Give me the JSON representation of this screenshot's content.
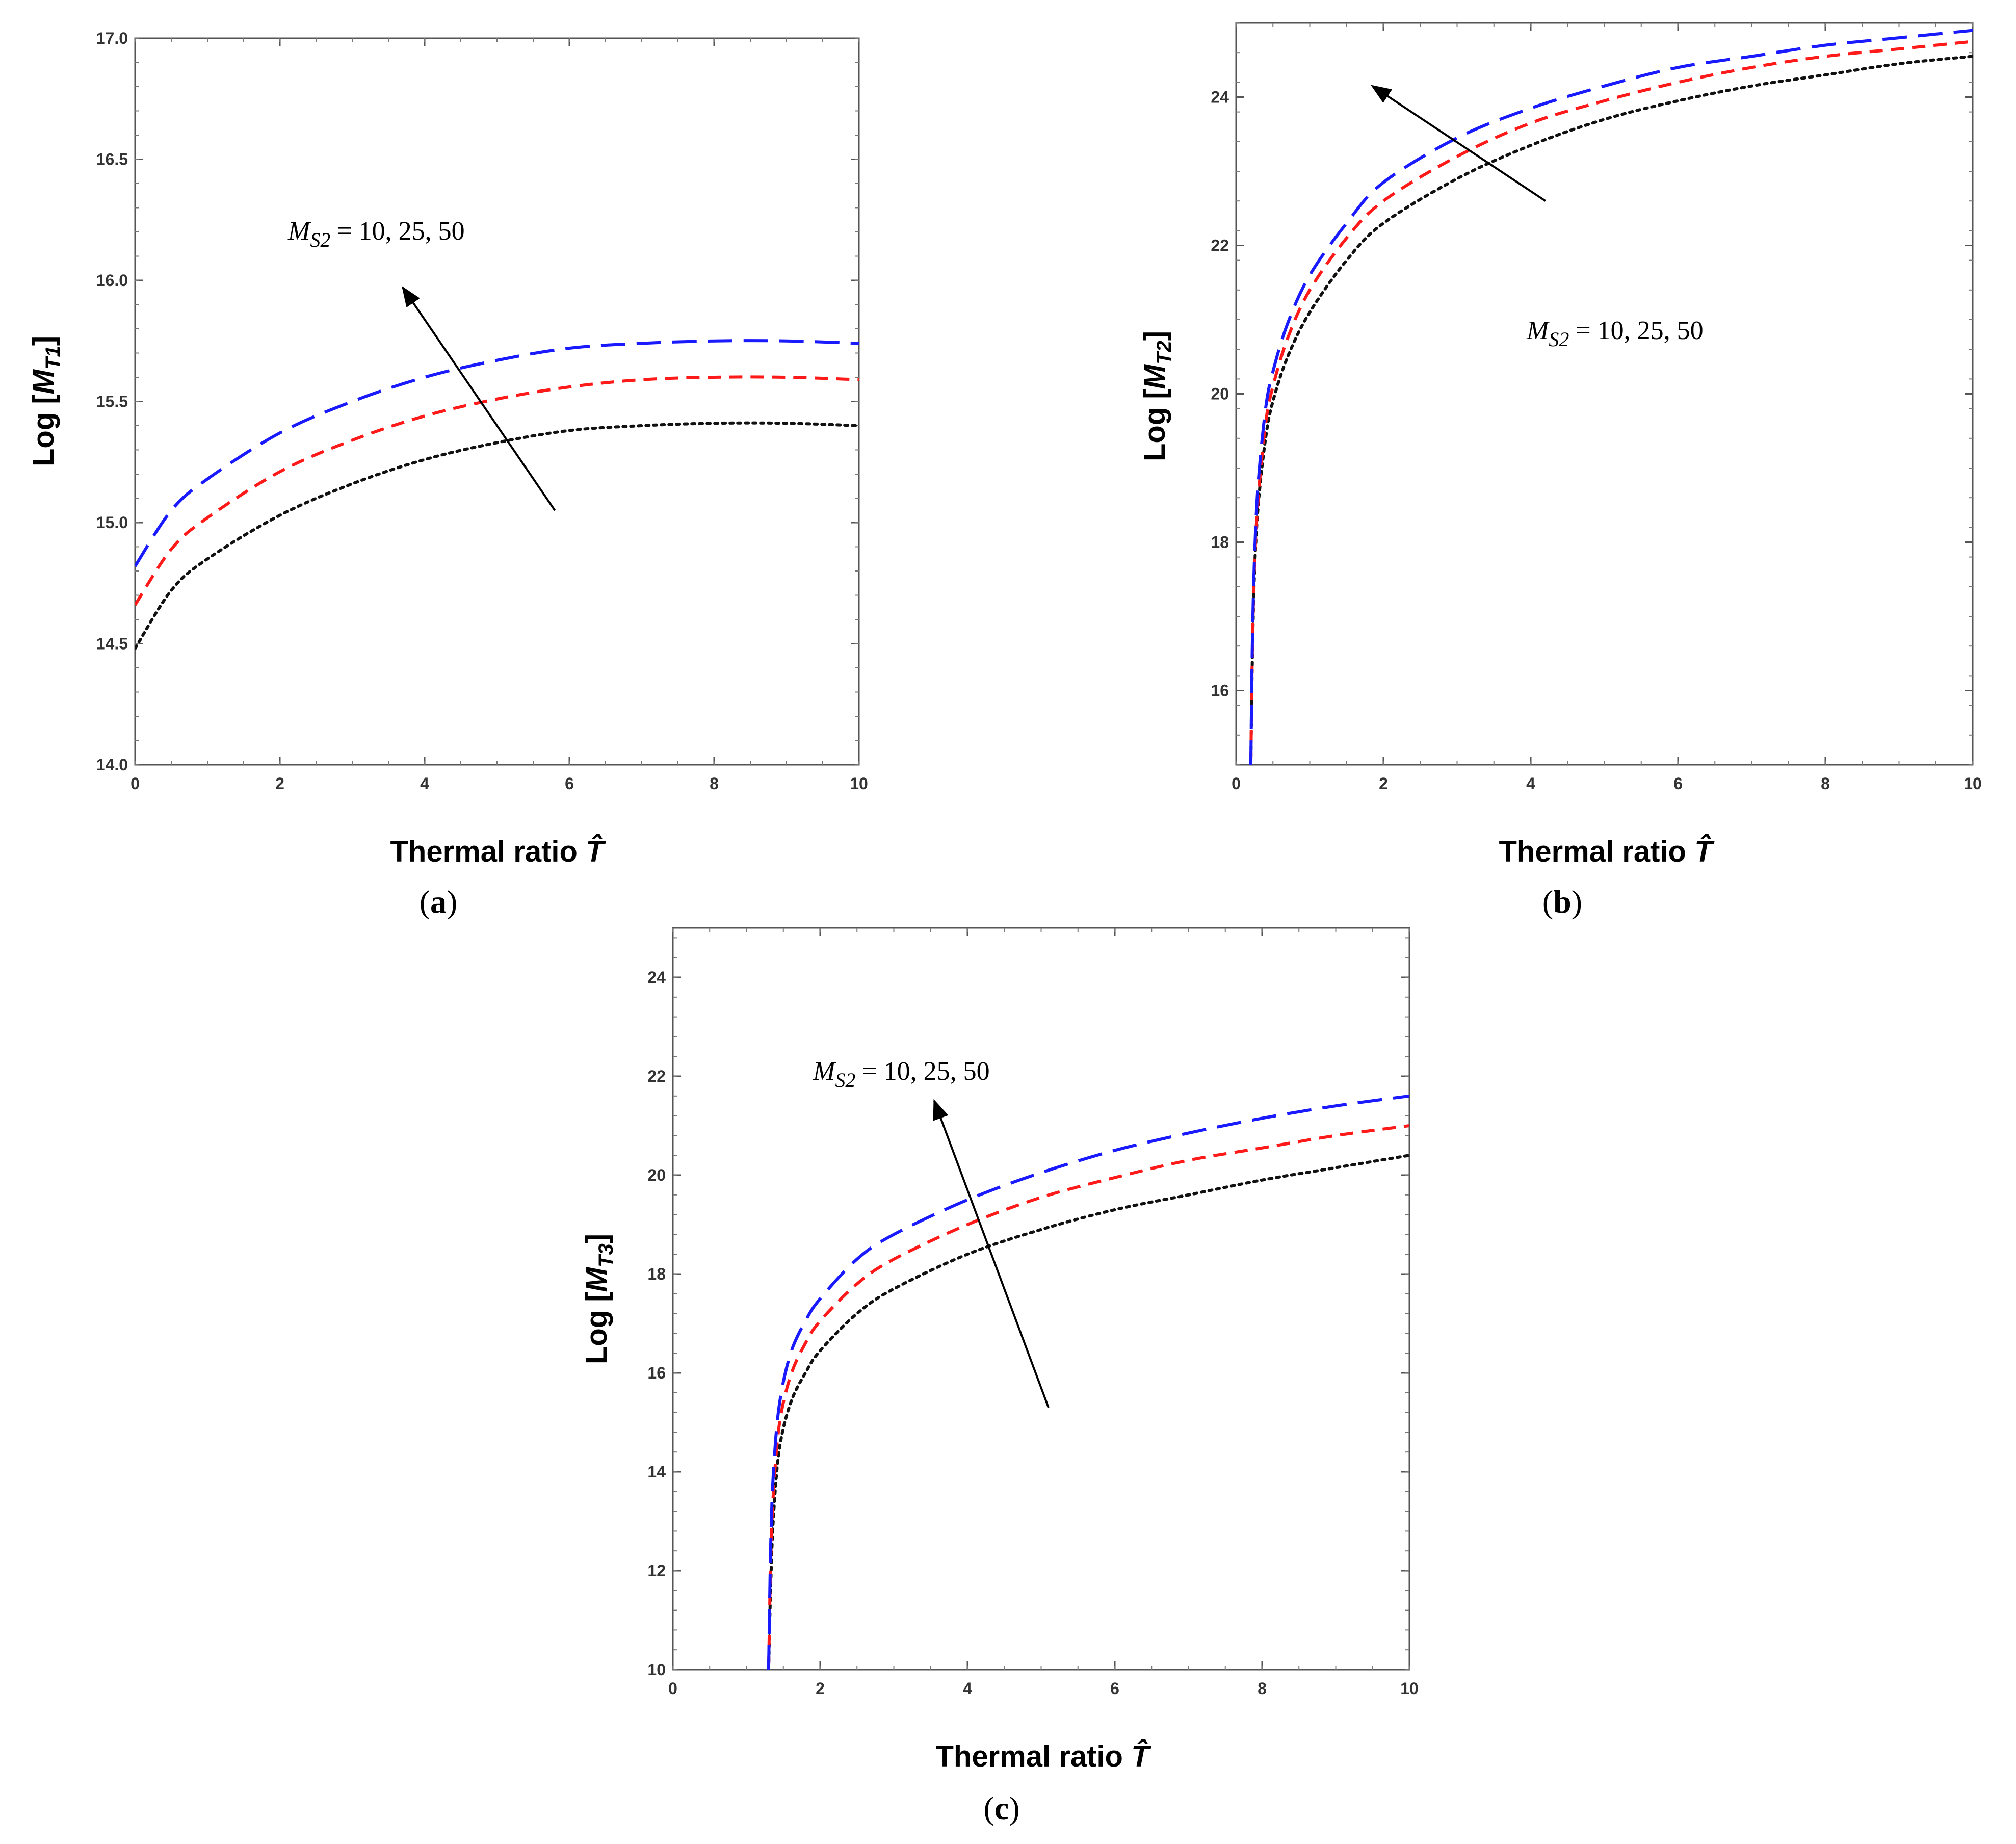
{
  "figure": {
    "colors": {
      "series_blue": "#1a1aff",
      "series_red": "#ff1a1a",
      "series_black": "#111111",
      "arrow": "#000000"
    }
  },
  "chart_data": [
    {
      "type": "line",
      "panel_label_prefix": "(",
      "panel_label_letter": "a",
      "panel_label_suffix": ")",
      "xlabel": "Thermal ratio",
      "xlabel_symbol": "T̂",
      "ylabel_prefix": "Log [",
      "ylabel_var": "M",
      "ylabel_sub": "T1",
      "ylabel_suffix": "]",
      "xlim": [
        0,
        10
      ],
      "ylim": [
        14.0,
        17.0
      ],
      "xticks": [
        0,
        2,
        4,
        6,
        8,
        10
      ],
      "yticks": [
        14.0,
        14.5,
        15.0,
        15.5,
        16.0,
        16.5,
        17.0
      ],
      "ytick_labels": [
        "14.0",
        "14.5",
        "15.0",
        "15.5",
        "16.0",
        "16.5",
        "17.0"
      ],
      "annotation": {
        "var": "M",
        "sub": "S2",
        "text": " = 10, 25, 50",
        "arrow_from": [
          5.8,
          15.05
        ],
        "arrow_to": [
          3.7,
          15.97
        ]
      },
      "series": [
        {
          "name": "M_S2 = 10",
          "style": "dotted",
          "color": "#111111",
          "x": [
            0,
            0.5,
            1,
            2,
            3,
            4,
            5,
            6,
            7,
            8,
            9,
            10
          ],
          "y": [
            14.48,
            14.72,
            14.85,
            15.03,
            15.16,
            15.26,
            15.33,
            15.38,
            15.4,
            15.41,
            15.41,
            15.4
          ]
        },
        {
          "name": "M_S2 = 25",
          "style": "dashed",
          "color": "#ff1a1a",
          "x": [
            0,
            0.5,
            1,
            2,
            3,
            4,
            5,
            6,
            7,
            8,
            9,
            10
          ],
          "y": [
            14.66,
            14.89,
            15.02,
            15.21,
            15.34,
            15.44,
            15.51,
            15.56,
            15.59,
            15.6,
            15.6,
            15.59
          ]
        },
        {
          "name": "M_S2 = 50",
          "style": "longdash",
          "color": "#1a1aff",
          "x": [
            0,
            0.5,
            1,
            2,
            3,
            4,
            5,
            6,
            7,
            8,
            9,
            10
          ],
          "y": [
            14.82,
            15.05,
            15.18,
            15.37,
            15.5,
            15.6,
            15.67,
            15.72,
            15.74,
            15.75,
            15.75,
            15.74
          ]
        }
      ]
    },
    {
      "type": "line",
      "panel_label_prefix": "(",
      "panel_label_letter": "b",
      "panel_label_suffix": ")",
      "xlabel": "Thermal ratio",
      "xlabel_symbol": "T̂",
      "ylabel_prefix": "Log [",
      "ylabel_var": "M",
      "ylabel_sub": "T2",
      "ylabel_suffix": "]",
      "xlim": [
        0,
        10
      ],
      "ylim": [
        15,
        25
      ],
      "xticks": [
        0,
        2,
        4,
        6,
        8,
        10
      ],
      "yticks": [
        16,
        18,
        20,
        22,
        24
      ],
      "ytick_labels": [
        "16",
        "18",
        "20",
        "22",
        "24"
      ],
      "annotation": {
        "var": "M",
        "sub": "S2",
        "text": " = 10, 25, 50",
        "arrow_from": [
          4.2,
          22.6
        ],
        "arrow_to": [
          1.85,
          24.15
        ]
      },
      "series": [
        {
          "name": "M_S2 = 10",
          "style": "dotted",
          "color": "#111111",
          "x": [
            0.2,
            0.22,
            0.25,
            0.3,
            0.4,
            0.5,
            0.7,
            1,
            1.5,
            2,
            3,
            4,
            5,
            6,
            7,
            8,
            9,
            10
          ],
          "y": [
            15.0,
            16.4,
            17.6,
            18.5,
            19.4,
            19.9,
            20.5,
            21.1,
            21.8,
            22.3,
            22.9,
            23.35,
            23.7,
            23.95,
            24.15,
            24.3,
            24.45,
            24.55
          ]
        },
        {
          "name": "M_S2 = 25",
          "style": "dashed",
          "color": "#ff1a1a",
          "x": [
            0.2,
            0.22,
            0.25,
            0.3,
            0.4,
            0.5,
            0.7,
            1,
            1.5,
            2,
            3,
            4,
            5,
            6,
            7,
            8,
            9,
            10
          ],
          "y": [
            15.0,
            16.5,
            17.7,
            18.6,
            19.6,
            20.1,
            20.75,
            21.4,
            22.1,
            22.6,
            23.2,
            23.65,
            23.95,
            24.2,
            24.4,
            24.55,
            24.65,
            24.75
          ]
        },
        {
          "name": "M_S2 = 50",
          "style": "longdash",
          "color": "#1a1aff",
          "x": [
            0.2,
            0.22,
            0.25,
            0.3,
            0.4,
            0.5,
            0.7,
            1,
            1.5,
            2,
            3,
            4,
            5,
            6,
            7,
            8,
            9,
            10
          ],
          "y": [
            15.0,
            16.6,
            17.8,
            18.8,
            19.8,
            20.3,
            20.95,
            21.6,
            22.3,
            22.85,
            23.45,
            23.85,
            24.15,
            24.4,
            24.55,
            24.7,
            24.8,
            24.9
          ]
        }
      ]
    },
    {
      "type": "line",
      "panel_label_prefix": "(",
      "panel_label_letter": "c",
      "panel_label_suffix": ")",
      "xlabel": "Thermal ratio",
      "xlabel_symbol": "T̂",
      "ylabel_prefix": "Log [",
      "ylabel_var": "M",
      "ylabel_sub": "T3",
      "ylabel_suffix": "]",
      "xlim": [
        0,
        10
      ],
      "ylim": [
        10,
        25
      ],
      "xticks": [
        0,
        2,
        4,
        6,
        8,
        10
      ],
      "yticks": [
        10,
        12,
        14,
        16,
        18,
        20,
        22,
        24
      ],
      "ytick_labels": [
        "10",
        "12",
        "14",
        "16",
        "18",
        "20",
        "22",
        "24"
      ],
      "annotation": {
        "var": "M",
        "sub": "S2",
        "text": " = 10, 25, 50",
        "arrow_from": [
          5.1,
          15.3
        ],
        "arrow_to": [
          3.55,
          21.5
        ]
      },
      "series": [
        {
          "name": "M_S2 = 10",
          "style": "dotted",
          "color": "#111111",
          "x": [
            1.3,
            1.33,
            1.37,
            1.45,
            1.6,
            1.8,
            2,
            2.5,
            3,
            4,
            5,
            6,
            7,
            8,
            9,
            10
          ],
          "y": [
            10.0,
            11.8,
            13.2,
            14.5,
            15.4,
            16.0,
            16.45,
            17.2,
            17.7,
            18.4,
            18.9,
            19.3,
            19.6,
            19.9,
            20.15,
            20.4
          ]
        },
        {
          "name": "M_S2 = 25",
          "style": "dashed",
          "color": "#ff1a1a",
          "x": [
            1.3,
            1.33,
            1.37,
            1.45,
            1.6,
            1.8,
            2,
            2.5,
            3,
            4,
            5,
            6,
            7,
            8,
            9,
            10
          ],
          "y": [
            10.0,
            12.3,
            13.7,
            15.0,
            15.95,
            16.6,
            17.05,
            17.8,
            18.3,
            19.0,
            19.55,
            19.95,
            20.3,
            20.55,
            20.8,
            21.0
          ]
        },
        {
          "name": "M_S2 = 50",
          "style": "longdash",
          "color": "#1a1aff",
          "x": [
            1.3,
            1.33,
            1.37,
            1.45,
            1.6,
            1.8,
            2,
            2.5,
            3,
            4,
            5,
            6,
            7,
            8,
            9,
            10
          ],
          "y": [
            10.0,
            12.6,
            14.1,
            15.4,
            16.4,
            17.05,
            17.5,
            18.3,
            18.8,
            19.5,
            20.05,
            20.5,
            20.85,
            21.15,
            21.4,
            21.6
          ]
        }
      ]
    }
  ]
}
